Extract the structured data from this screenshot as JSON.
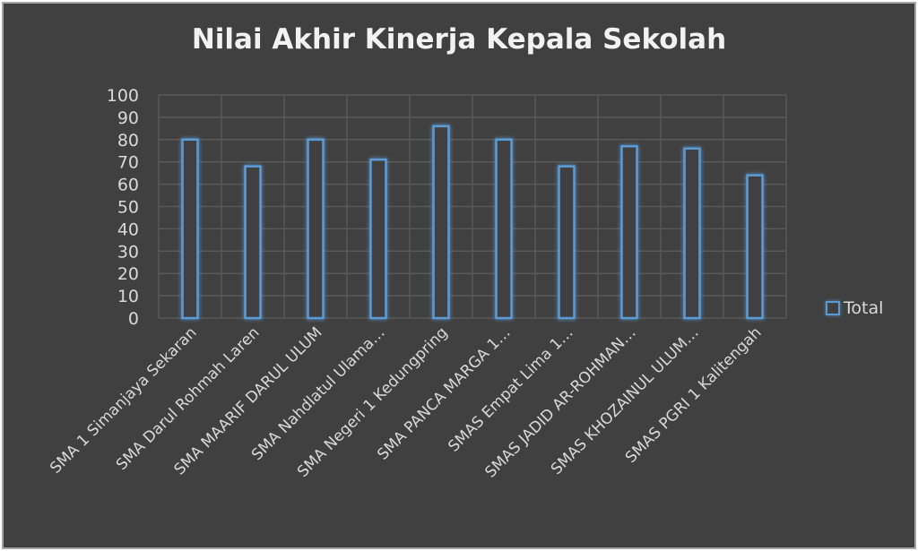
{
  "chart_data": {
    "type": "bar",
    "title": "Nilai Akhir Kinerja Kepala Sekolah",
    "xlabel": "",
    "ylabel": "",
    "ylim": [
      0,
      100
    ],
    "yticks": [
      0,
      10,
      20,
      30,
      40,
      50,
      60,
      70,
      80,
      90,
      100
    ],
    "grid": true,
    "legend_position": "right",
    "categories": [
      "SMA 1 Simanjaya Sekaran",
      "SMA Darul Rohmah Laren",
      "SMA MAARIF DARUL ULUM",
      "SMA Nahdlatul Ulama…",
      "SMA Negeri 1 Kedungpring",
      "SMA PANCA MARGA 1…",
      "SMAS Empat Lima 1…",
      "SMAS JADID AR-ROHMAN…",
      "SMAS KHOZAINUL ULUM…",
      "SMAS PGRI 1 Kalitengah"
    ],
    "series": [
      {
        "name": "Total",
        "values": [
          80,
          68,
          80,
          71,
          86,
          80,
          68,
          77,
          76,
          64
        ]
      }
    ],
    "colors": {
      "background": "#404040",
      "bar_stroke": "#5b9bd5",
      "grid": "#595959",
      "text": "#d9d9d9"
    }
  }
}
